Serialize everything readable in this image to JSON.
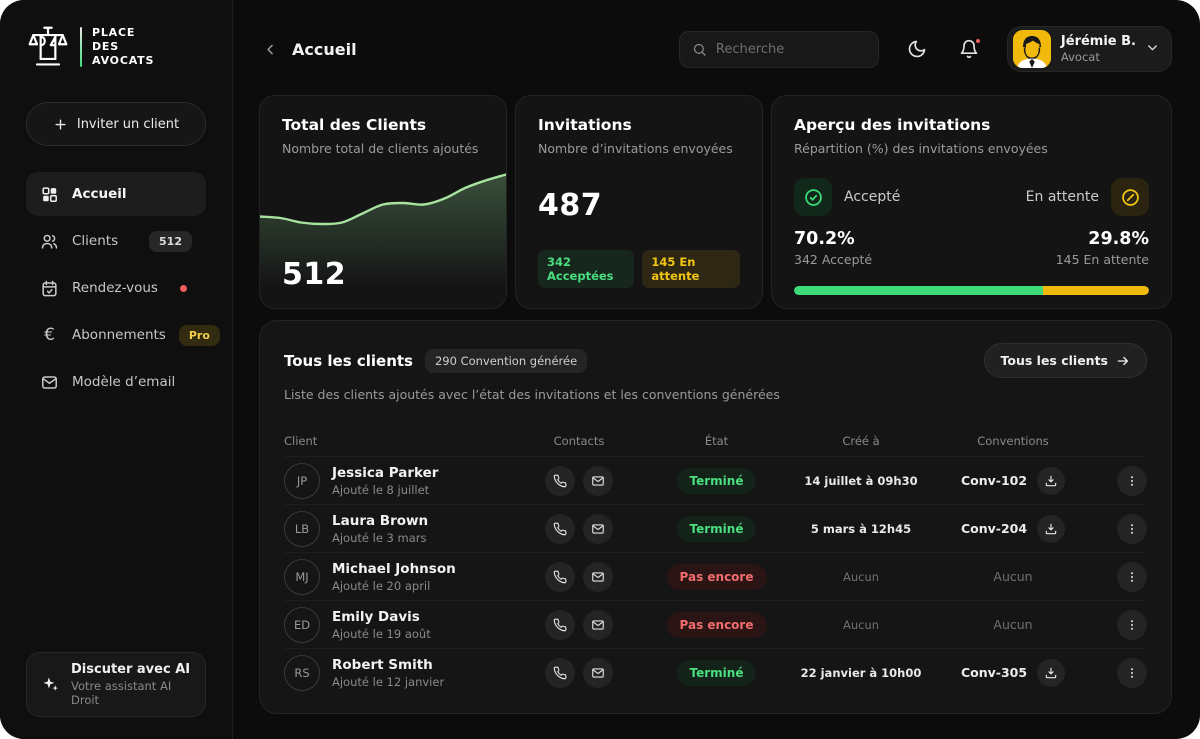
{
  "colors": {
    "green": "#3ddc78",
    "green-text": "#4ade80",
    "yellow": "#f2b90d",
    "red": "#f05d5d",
    "line": "#a8e29f"
  },
  "brand": {
    "name": "Place\ndes\nAvocats"
  },
  "sidebar": {
    "invite_button": "Inviter un client",
    "items": [
      {
        "label": "Accueil"
      },
      {
        "label": "Clients",
        "badge": "512"
      },
      {
        "label": "Rendez-vous"
      },
      {
        "label": "Abonnements",
        "badge": "Pro"
      },
      {
        "label": "Modèle d’email"
      }
    ],
    "ai_button": {
      "title": "Discuter avec AI",
      "subtitle": "Votre assistant AI Droit"
    }
  },
  "header": {
    "title": "Accueil",
    "search_placeholder": "Recherche",
    "user": {
      "name": "Jérémie B.",
      "role": "Avocat"
    }
  },
  "cards": {
    "clients": {
      "title": "Total des Clients",
      "subtitle": "Nombre total de clients ajoutés",
      "value": "512",
      "sparkline": [
        61,
        60,
        57,
        56,
        57,
        63,
        69,
        70,
        69,
        73,
        80,
        85,
        89
      ]
    },
    "invitations": {
      "title": "Invitations",
      "subtitle": "Nombre d’invitations envoyées",
      "value": "487",
      "accepted_badge": "342 Acceptées",
      "pending_badge": "145 En attente"
    },
    "overview": {
      "title": "Aperçu des invitations",
      "subtitle": "Répartition (%) des invitations envoyées",
      "accepted": {
        "label": "Accepté",
        "percent": "70.2%",
        "count": "342 Accepté"
      },
      "pending": {
        "label": "En attente",
        "percent": "29.8%",
        "count": "145 En attente"
      },
      "bar": {
        "accepted_pct": 70.2,
        "pending_pct": 29.8
      }
    }
  },
  "chart_data": {
    "type": "line",
    "title": "Total des Clients (sparkline)",
    "values": [
      61,
      60,
      57,
      56,
      57,
      63,
      69,
      70,
      69,
      73,
      80,
      85,
      89
    ],
    "ylim": [
      0,
      100
    ],
    "grid": false
  },
  "table": {
    "title": "Tous les clients",
    "title_badge": "290 Convention générée",
    "subtitle": "Liste des clients ajoutés avec l’état des invitations et les conventions générées",
    "view_all": "Tous les clients",
    "columns": [
      "Client",
      "Contacts",
      "État",
      "Créé à",
      "Conventions"
    ],
    "rows": [
      {
        "initials": "JP",
        "name": "Jessica Parker",
        "added": "Ajouté le 8 juillet",
        "state": "Terminé",
        "state_type": "done",
        "created": "14 juillet à 09h30",
        "convention": "Conv-102",
        "has_download": true
      },
      {
        "initials": "LB",
        "name": "Laura Brown",
        "added": "Ajouté le 3 mars",
        "state": "Terminé",
        "state_type": "done",
        "created": "5 mars à 12h45",
        "convention": "Conv-204",
        "has_download": true
      },
      {
        "initials": "MJ",
        "name": "Michael Johnson",
        "added": "Ajouté le 20 april",
        "state": "Pas encore",
        "state_type": "pending",
        "created": "Aucun",
        "convention": "Aucun",
        "has_download": false
      },
      {
        "initials": "ED",
        "name": "Emily Davis",
        "added": "Ajouté le 19 août",
        "state": "Pas encore",
        "state_type": "pending",
        "created": "Aucun",
        "convention": "Aucun",
        "has_download": false
      },
      {
        "initials": "RS",
        "name": "Robert Smith",
        "added": "Ajouté le 12 janvier",
        "state": "Terminé",
        "state_type": "done",
        "created": "22 janvier à 10h00",
        "convention": "Conv-305",
        "has_download": true
      }
    ]
  }
}
